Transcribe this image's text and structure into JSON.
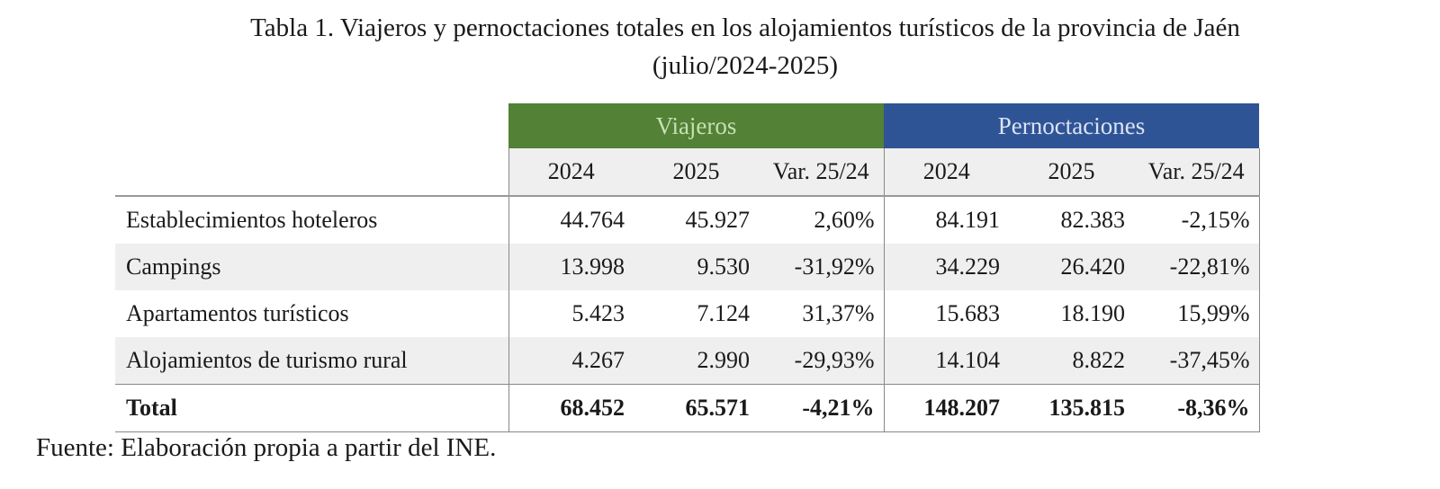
{
  "title": {
    "line1": "Tabla 1. Viajeros y pernoctaciones totales en los alojamientos turísticos de la provincia de Jaén",
    "line2": "(julio/2024-2025)"
  },
  "groups": {
    "viajeros": "Viajeros",
    "pernoctaciones": "Pernoctaciones"
  },
  "colors": {
    "viajeros": "#538135",
    "pernoctaciones": "#2f5496"
  },
  "subheaders": [
    "2024",
    "2025",
    "Var. 25/24",
    "2024",
    "2025",
    "Var. 25/24"
  ],
  "rows": [
    {
      "label": "Establecimientos hoteleros",
      "values": [
        "44.764",
        "45.927",
        "2,60%",
        "84.191",
        "82.383",
        "-2,15%"
      ]
    },
    {
      "label": "Campings",
      "values": [
        "13.998",
        "9.530",
        "-31,92%",
        "34.229",
        "26.420",
        "-22,81%"
      ]
    },
    {
      "label": "Apartamentos turísticos",
      "values": [
        "5.423",
        "7.124",
        "31,37%",
        "15.683",
        "18.190",
        "15,99%"
      ]
    },
    {
      "label": "Alojamientos de turismo rural",
      "values": [
        "4.267",
        "2.990",
        "-29,93%",
        "14.104",
        "8.822",
        "-37,45%"
      ]
    },
    {
      "label": "Total",
      "values": [
        "68.452",
        "65.571",
        "-4,21%",
        "148.207",
        "135.815",
        "-8,36%"
      ]
    }
  ],
  "source": "Fuente: Elaboración propia a partir del INE."
}
